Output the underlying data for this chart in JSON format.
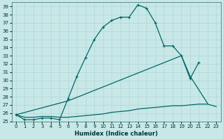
{
  "xlabel": "Humidex (Indice chaleur)",
  "ylabel": "",
  "bg_color": "#c8e8e8",
  "grid_color": "#b0d4d4",
  "line_color": "#006666",
  "xlim": [
    -0.5,
    23.5
  ],
  "ylim": [
    25,
    39.5
  ],
  "xticks": [
    0,
    1,
    2,
    3,
    4,
    5,
    6,
    7,
    8,
    9,
    10,
    11,
    12,
    13,
    14,
    15,
    16,
    17,
    18,
    19,
    20,
    21,
    22,
    23
  ],
  "yticks": [
    25,
    26,
    27,
    28,
    29,
    30,
    31,
    32,
    33,
    34,
    35,
    36,
    37,
    38,
    39
  ],
  "line1_x": [
    0,
    1,
    2,
    3,
    4,
    5,
    6,
    7,
    8,
    9,
    10,
    11,
    12,
    13,
    14,
    15,
    16,
    17,
    18,
    19,
    20,
    21
  ],
  "line1_y": [
    25.8,
    25.2,
    25.2,
    25.4,
    25.4,
    25.2,
    27.8,
    30.5,
    32.8,
    35.0,
    36.5,
    37.3,
    37.7,
    37.7,
    39.2,
    38.8,
    37.0,
    34.2,
    34.2,
    33.0,
    30.2,
    32.2
  ],
  "line2_x": [
    0,
    6,
    19,
    20,
    22
  ],
  "line2_y": [
    25.8,
    27.5,
    33.0,
    30.5,
    27.2
  ],
  "line3_x": [
    0,
    1,
    2,
    3,
    4,
    5,
    6,
    7,
    8,
    9,
    10,
    11,
    12,
    13,
    14,
    15,
    16,
    17,
    18,
    19,
    20,
    21,
    22,
    23
  ],
  "line3_y": [
    25.8,
    25.5,
    25.5,
    25.6,
    25.6,
    25.5,
    25.5,
    25.6,
    25.7,
    25.8,
    25.9,
    26.1,
    26.2,
    26.3,
    26.5,
    26.6,
    26.7,
    26.8,
    26.9,
    26.9,
    27.0,
    27.1,
    27.1,
    26.8
  ],
  "marker": "+",
  "markersize": 3,
  "linewidth": 0.9,
  "tick_labelsize": 5,
  "xlabel_fontsize": 6,
  "xlabel_fontweight": "bold"
}
